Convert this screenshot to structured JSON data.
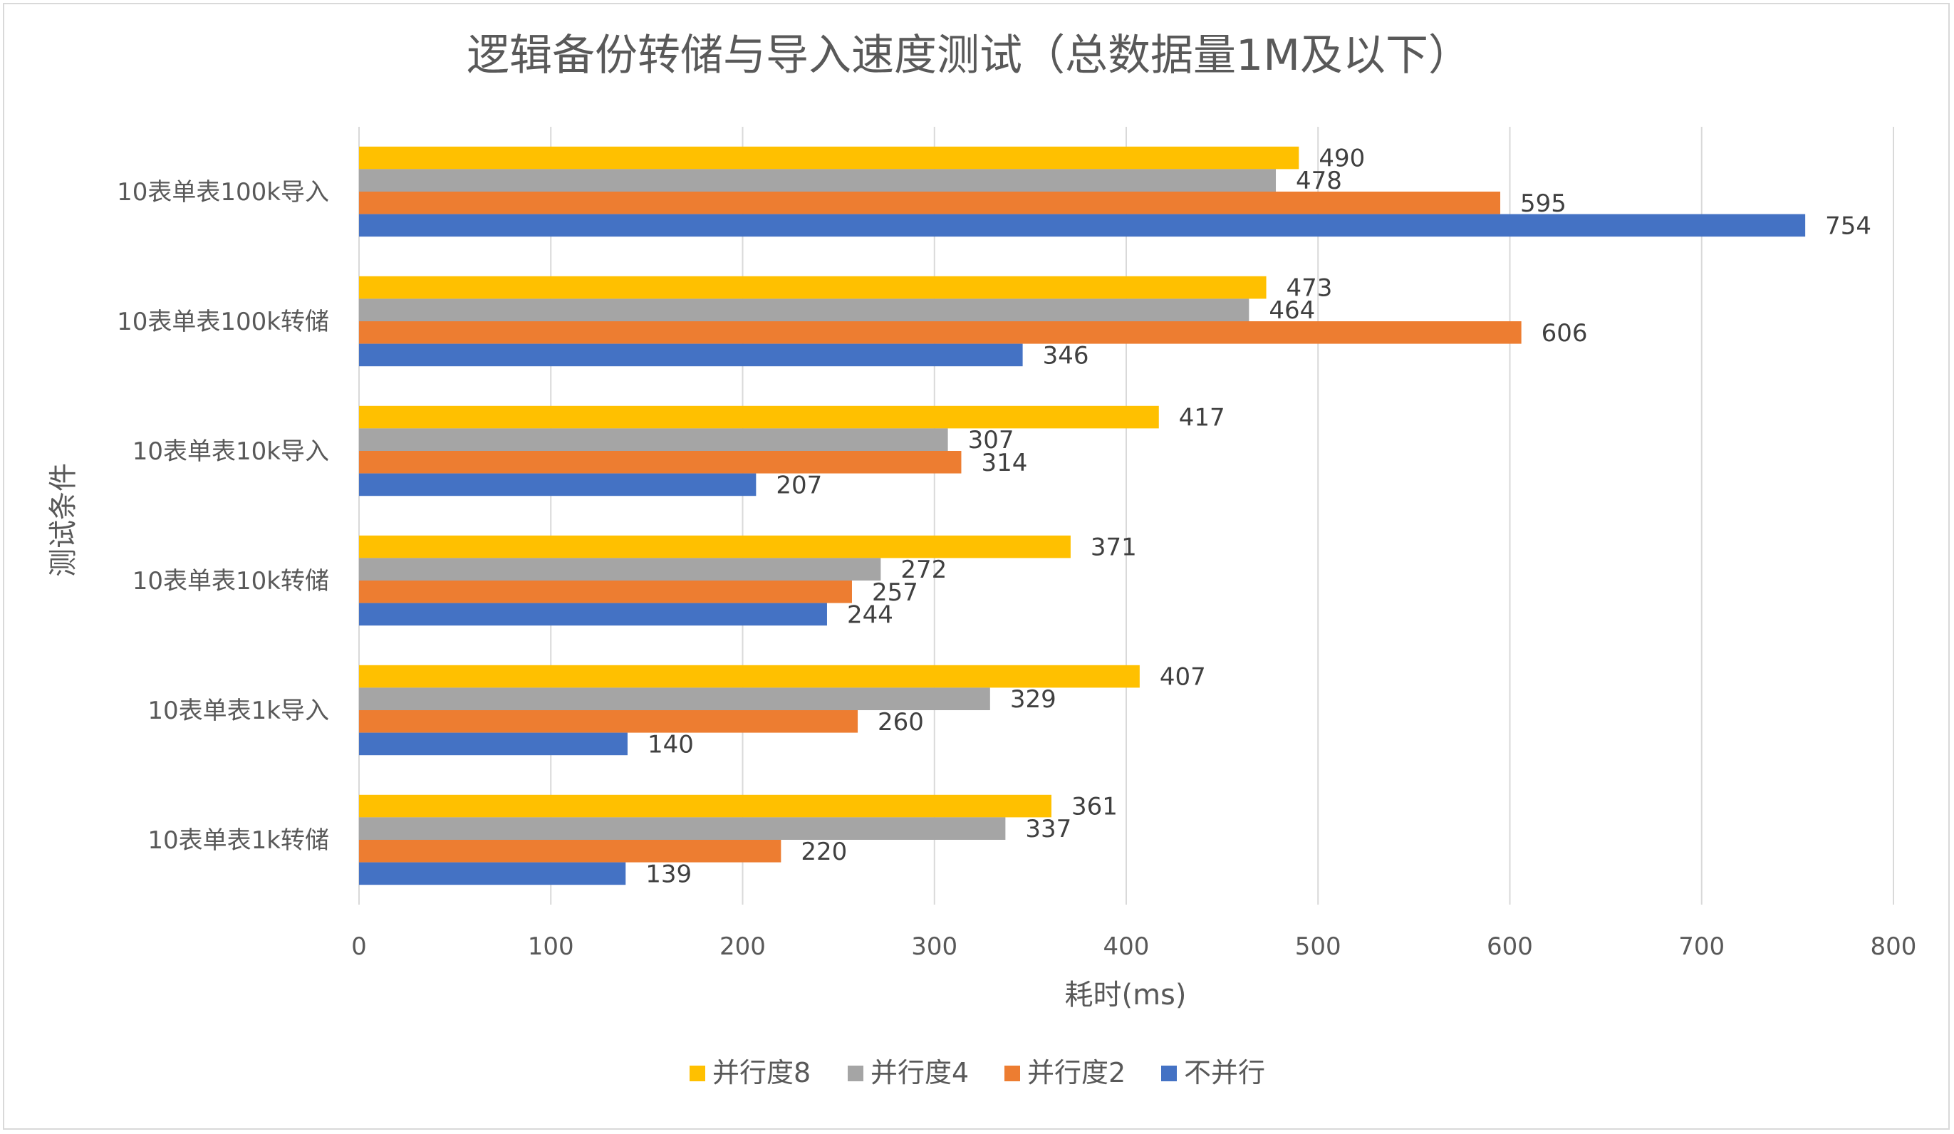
{
  "chart_data": {
    "type": "bar",
    "orientation": "horizontal",
    "title": "逻辑备份转储与导入速度测试（总数据量1M及以下）",
    "xlabel": "耗时(ms)",
    "ylabel": "测试条件",
    "xlim": [
      0,
      800
    ],
    "xticks": [
      0,
      100,
      200,
      300,
      400,
      500,
      600,
      700,
      800
    ],
    "grid": "vertical",
    "legend_position": "bottom",
    "categories": [
      "10表单表100k导入",
      "10表单表100k转储",
      "10表单表10k导入",
      "10表单表10k转储",
      "10表单表1k导入",
      "10表单表1k转储"
    ],
    "series": [
      {
        "name": "并行度8",
        "color": "#FFC000",
        "values": [
          490,
          473,
          417,
          371,
          407,
          361
        ]
      },
      {
        "name": "并行度4",
        "color": "#A5A5A5",
        "values": [
          478,
          464,
          307,
          272,
          329,
          337
        ]
      },
      {
        "name": "并行度2",
        "color": "#ED7D31",
        "values": [
          595,
          606,
          314,
          257,
          260,
          220
        ]
      },
      {
        "name": "不并行",
        "color": "#4472C4",
        "values": [
          754,
          346,
          207,
          244,
          140,
          139
        ]
      }
    ]
  }
}
